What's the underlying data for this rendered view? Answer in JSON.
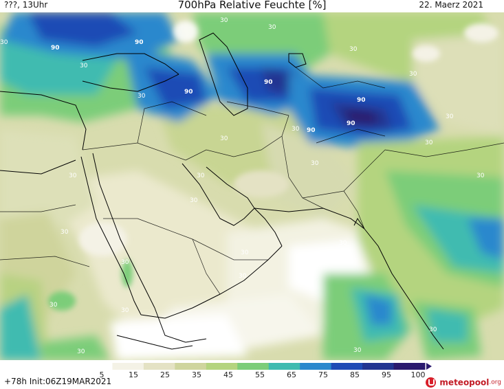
{
  "header": {
    "left_label": "???, 13Uhr",
    "title": "700hPa Relative Feuchte [%]",
    "date": "22. Maerz 2021"
  },
  "footer": {
    "forecast_hour": "+78h",
    "init_label": "Init:06Z19MAR2021",
    "logo_text": "meteopool",
    "logo_suffix": ".org"
  },
  "legend": {
    "ticks": [
      "5",
      "15",
      "25",
      "35",
      "45",
      "55",
      "65",
      "75",
      "85",
      "95",
      "100"
    ],
    "colors": [
      "#ffffff",
      "#f4f2e6",
      "#e4e2c4",
      "#cfd59e",
      "#b4d47f",
      "#7ccd79",
      "#3fbbb0",
      "#2a88cd",
      "#1f4bb5",
      "#223591",
      "#2a1a6e"
    ]
  },
  "map": {
    "contour_labels": [
      "30",
      "90"
    ]
  }
}
